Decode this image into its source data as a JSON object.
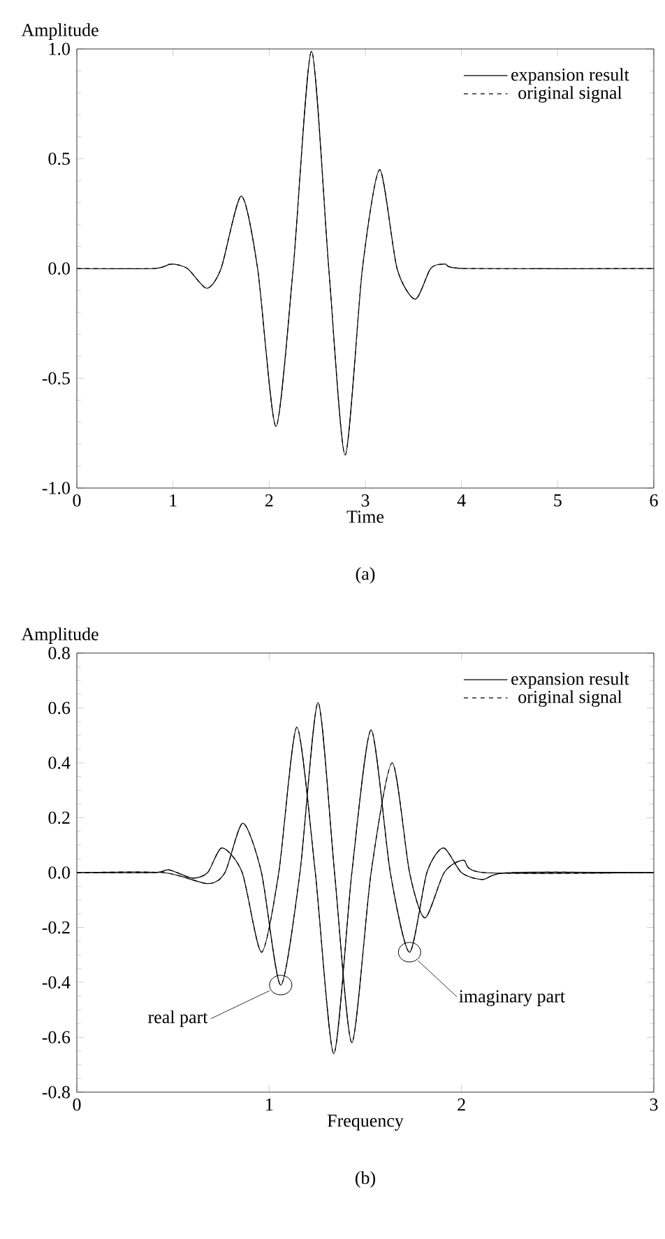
{
  "chart_data": [
    {
      "type": "line",
      "xlabel": "Time",
      "ylabel": "Amplitude",
      "xlim": [
        0,
        6
      ],
      "ylim": [
        -1.0,
        1.0
      ],
      "xticks": [
        0,
        1,
        2,
        3,
        4,
        5,
        6
      ],
      "yticks": [
        {
          "value": -1.0,
          "label": "-1.0"
        },
        {
          "value": -0.5,
          "label": "-0.5"
        },
        {
          "value": 0,
          "label": "0.0"
        },
        {
          "value": 0.5,
          "label": "0.5"
        },
        {
          "value": 1.0,
          "label": "1.0"
        }
      ],
      "legend": "top right",
      "annotations": [
        "(a)"
      ],
      "series": [
        {
          "name": "expansion result",
          "color": "#000000",
          "line_style": "solid",
          "x": [
            0,
            0.8,
            0.98,
            1.15,
            1.35,
            1.5,
            1.71,
            1.88,
            2.07,
            2.25,
            2.44,
            2.62,
            2.79,
            2.97,
            3.15,
            3.33,
            3.52,
            3.68,
            3.83,
            4.05,
            6
          ],
          "values": [
            0,
            0,
            0.02,
            0,
            -0.09,
            0,
            0.33,
            0,
            -0.72,
            0,
            0.99,
            0,
            -0.85,
            0,
            0.45,
            0,
            -0.14,
            0,
            0.02,
            0,
            0
          ]
        },
        {
          "name": "original signal",
          "color": "#000000",
          "line_style": "dashed",
          "x": [
            0,
            0.8,
            0.98,
            1.15,
            1.35,
            1.5,
            1.71,
            1.88,
            2.07,
            2.25,
            2.44,
            2.62,
            2.79,
            2.97,
            3.15,
            3.33,
            3.52,
            3.68,
            3.83,
            4.05,
            6
          ],
          "values": [
            0,
            0,
            0.02,
            0,
            -0.09,
            0,
            0.33,
            0,
            -0.72,
            0,
            0.99,
            0,
            -0.85,
            0,
            0.45,
            0,
            -0.14,
            0,
            0.02,
            0,
            0
          ]
        }
      ]
    },
    {
      "type": "line",
      "xlabel": "Frequency",
      "ylabel": "Amplitude",
      "xlim": [
        0,
        3
      ],
      "ylim": [
        -0.8,
        0.8
      ],
      "xticks": [
        0,
        1,
        2,
        3
      ],
      "yticks": [
        {
          "value": -0.8,
          "label": "-0.8"
        },
        {
          "value": -0.6,
          "label": "-0.6"
        },
        {
          "value": -0.4,
          "label": "-0.4"
        },
        {
          "value": -0.2,
          "label": "-0.2"
        },
        {
          "value": 0,
          "label": "0.0"
        },
        {
          "value": 0.2,
          "label": "0.2"
        },
        {
          "value": 0.4,
          "label": "0.4"
        },
        {
          "value": 0.6,
          "label": "0.6"
        },
        {
          "value": 0.8,
          "label": "0.8"
        }
      ],
      "legend": "top right",
      "annotations": [
        {
          "text": "real part",
          "x": 1.06,
          "y": -0.41
        },
        {
          "text": "imaginary part",
          "x": 1.73,
          "y": -0.29
        },
        "(b)"
      ],
      "series": [
        {
          "name": "expansion result",
          "color": "#000000",
          "line_style": "solid",
          "x": [
            0,
            0.45,
            0.68,
            0.77,
            0.863,
            0.96,
            1.06,
            1.16,
            1.254,
            1.34,
            1.43,
            1.53,
            1.64,
            1.73,
            1.81,
            1.91,
            2.01,
            2.12,
            3
          ],
          "values": [
            0,
            0,
            -0.04,
            0,
            0.18,
            0,
            -0.41,
            0,
            0.62,
            0,
            -0.62,
            0,
            0.4,
            0,
            -0.165,
            0,
            0.045,
            0,
            0
          ]
        },
        {
          "name": "original signal",
          "color": "#000000",
          "line_style": "dashed",
          "x": [
            0,
            0.45,
            0.68,
            0.77,
            0.863,
            0.96,
            1.06,
            1.16,
            1.254,
            1.34,
            1.43,
            1.53,
            1.64,
            1.73,
            1.81,
            1.91,
            2.01,
            2.12,
            3
          ],
          "values": [
            0,
            0,
            -0.04,
            0,
            0.18,
            0,
            -0.41,
            0,
            0.62,
            0,
            -0.62,
            0,
            0.4,
            0,
            -0.165,
            0,
            0.045,
            0,
            0
          ]
        },
        {
          "color": "#000000",
          "line_style": "solid",
          "x": [
            0,
            0.4,
            0.48,
            0.6,
            0.68,
            0.755,
            0.86,
            0.96,
            1.05,
            1.144,
            1.24,
            1.336,
            1.43,
            1.53,
            1.63,
            1.73,
            1.82,
            1.906,
            2.0,
            2.11,
            2.25,
            3
          ],
          "values": [
            0,
            0,
            0.01,
            -0.02,
            0,
            0.09,
            0,
            -0.29,
            0,
            0.53,
            0,
            -0.66,
            0,
            0.52,
            0,
            -0.29,
            0,
            0.09,
            0,
            -0.025,
            0,
            0
          ]
        },
        {
          "color": "#000000",
          "line_style": "dashed",
          "x": [
            0,
            0.4,
            0.48,
            0.6,
            0.68,
            0.755,
            0.86,
            0.96,
            1.05,
            1.144,
            1.24,
            1.336,
            1.43,
            1.53,
            1.63,
            1.73,
            1.82,
            1.906,
            2.0,
            2.11,
            2.25,
            3
          ],
          "values": [
            0,
            0,
            0.01,
            -0.02,
            0,
            0.09,
            0,
            -0.29,
            0,
            0.53,
            0,
            -0.66,
            0,
            0.52,
            0,
            -0.29,
            0,
            0.09,
            0,
            -0.025,
            0,
            0
          ]
        }
      ]
    }
  ]
}
